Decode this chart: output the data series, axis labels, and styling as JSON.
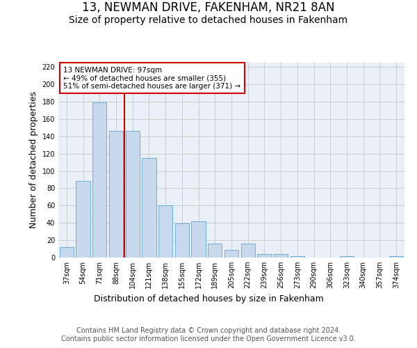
{
  "title": "13, NEWMAN DRIVE, FAKENHAM, NR21 8AN",
  "subtitle": "Size of property relative to detached houses in Fakenham",
  "xlabel": "Distribution of detached houses by size in Fakenham",
  "ylabel": "Number of detached properties",
  "categories": [
    "37sqm",
    "54sqm",
    "71sqm",
    "88sqm",
    "104sqm",
    "121sqm",
    "138sqm",
    "155sqm",
    "172sqm",
    "189sqm",
    "205sqm",
    "222sqm",
    "239sqm",
    "256sqm",
    "273sqm",
    "290sqm",
    "306sqm",
    "323sqm",
    "340sqm",
    "357sqm",
    "374sqm"
  ],
  "values": [
    12,
    88,
    179,
    146,
    146,
    115,
    60,
    39,
    42,
    16,
    9,
    16,
    4,
    4,
    2,
    0,
    0,
    2,
    0,
    0,
    2
  ],
  "bar_color": "#c8d9ed",
  "bar_edge_color": "#6baed6",
  "grid_color": "#cccccc",
  "background_color": "#eaf0f8",
  "annotation_text": "13 NEWMAN DRIVE: 97sqm\n← 49% of detached houses are smaller (355)\n51% of semi-detached houses are larger (371) →",
  "annotation_box_color": "#ffffff",
  "annotation_box_edge": "#cc0000",
  "ylim": [
    0,
    225
  ],
  "yticks": [
    0,
    20,
    40,
    60,
    80,
    100,
    120,
    140,
    160,
    180,
    200,
    220
  ],
  "footer_text": "Contains HM Land Registry data © Crown copyright and database right 2024.\nContains public sector information licensed under the Open Government Licence v3.0.",
  "title_fontsize": 12,
  "subtitle_fontsize": 10,
  "xlabel_fontsize": 9,
  "ylabel_fontsize": 9,
  "footer_fontsize": 7,
  "annot_fontsize": 7.5,
  "tick_fontsize": 7
}
